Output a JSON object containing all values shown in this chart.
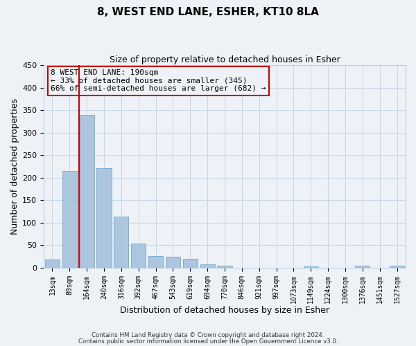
{
  "title": "8, WEST END LANE, ESHER, KT10 8LA",
  "subtitle": "Size of property relative to detached houses in Esher",
  "xlabel": "Distribution of detached houses by size in Esher",
  "ylabel": "Number of detached properties",
  "bar_labels": [
    "13sqm",
    "89sqm",
    "164sqm",
    "240sqm",
    "316sqm",
    "392sqm",
    "467sqm",
    "543sqm",
    "619sqm",
    "694sqm",
    "770sqm",
    "846sqm",
    "921sqm",
    "997sqm",
    "1073sqm",
    "1149sqm",
    "1224sqm",
    "1300sqm",
    "1376sqm",
    "1451sqm",
    "1527sqm"
  ],
  "bar_values": [
    18,
    215,
    340,
    222,
    113,
    53,
    26,
    25,
    20,
    8,
    4,
    0,
    0,
    0,
    0,
    3,
    0,
    0,
    5,
    0,
    4
  ],
  "bar_color": "#adc6e0",
  "bar_edgecolor": "#7aafd4",
  "ylim": [
    0,
    450
  ],
  "yticks": [
    0,
    50,
    100,
    150,
    200,
    250,
    300,
    350,
    400,
    450
  ],
  "vline_color": "#cc0000",
  "annotation_text": "8 WEST END LANE: 190sqm\n← 33% of detached houses are smaller (345)\n66% of semi-detached houses are larger (682) →",
  "annotation_box_edgecolor": "#cc0000",
  "footer_line1": "Contains HM Land Registry data © Crown copyright and database right 2024.",
  "footer_line2": "Contains public sector information licensed under the Open Government Licence v3.0.",
  "bg_color": "#eef2f7",
  "grid_color": "#c5d5e8",
  "figsize": [
    6.0,
    5.0
  ],
  "dpi": 100
}
